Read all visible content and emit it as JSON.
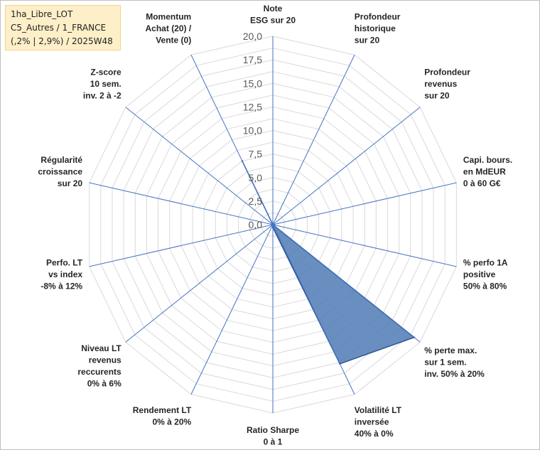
{
  "header": {
    "lines": [
      "1ha_Libre_LOT",
      "C5_Autres / 1_FRANCE",
      "(,2% | 2,9%) / 2025W48"
    ]
  },
  "chart_data": {
    "type": "radar",
    "ylim": [
      0,
      20
    ],
    "tick_labels": [
      "0,0",
      "2,5",
      "5,0",
      "7,5",
      "10,0",
      "12,5",
      "15,0",
      "17,5",
      "20,0"
    ],
    "categories": [
      "Note ESG sur 20",
      "Profondeur historique sur 20",
      "Profondeur revenus sur 20",
      "Capi. bours. en MdEUR 0 à 60 G€",
      "% perfo 1A positive 50% à 80%",
      "% perte max. sur 1 sem. inv. 50% à 20%",
      "Volatilité LT inversée 40% à 0%",
      "Ratio Sharpe 0 à 1",
      "Rendement LT 0% à 20%",
      "Niveau LT revenus reccurents 0% à 6%",
      "Perfo. LT vs index -8% à 12%",
      "Régularité croissance sur 20",
      "Z-score 10 sem. inv. 2 à -2",
      "Momentum Achat (20) / Vente (0)"
    ],
    "category_lines": [
      [
        "Note",
        "ESG sur 20"
      ],
      [
        "Profondeur",
        "historique",
        "sur 20"
      ],
      [
        "Profondeur",
        "revenus",
        "sur 20"
      ],
      [
        "Capi. bours.",
        "en MdEUR",
        "0 à 60 G€"
      ],
      [
        "% perfo 1A",
        "positive",
        "50% à 80%"
      ],
      [
        "% perte max.",
        "sur 1 sem.",
        "inv. 50% à 20%"
      ],
      [
        "Volatilité LT",
        "inversée",
        "40% à 0%"
      ],
      [
        "Ratio Sharpe",
        "0 à 1"
      ],
      [
        "Rendement LT",
        "0% à 20%"
      ],
      [
        "Niveau LT",
        "revenus",
        "reccurents",
        "0% à 6%"
      ],
      [
        "Perfo. LT",
        "vs index",
        "-8% à 12%"
      ],
      [
        "Régularité",
        "croissance",
        "sur 20"
      ],
      [
        "Z-score",
        "10 sem.",
        "inv. 2 à -2"
      ],
      [
        "Momentum",
        "Achat (20) /",
        "Vente (0)"
      ]
    ],
    "series": [
      {
        "values": [
          0,
          0,
          0,
          0,
          0,
          19.2,
          16.4,
          0.3,
          0,
          0,
          0,
          0,
          0,
          7.5
        ],
        "color": "#4f7ab5"
      }
    ],
    "colors": {
      "fill": "#4f7ab5",
      "outline": "#2f5597",
      "spokes": "#4472c4",
      "grid": "#d9d9d9",
      "info_bg": "#fdefc8"
    }
  }
}
